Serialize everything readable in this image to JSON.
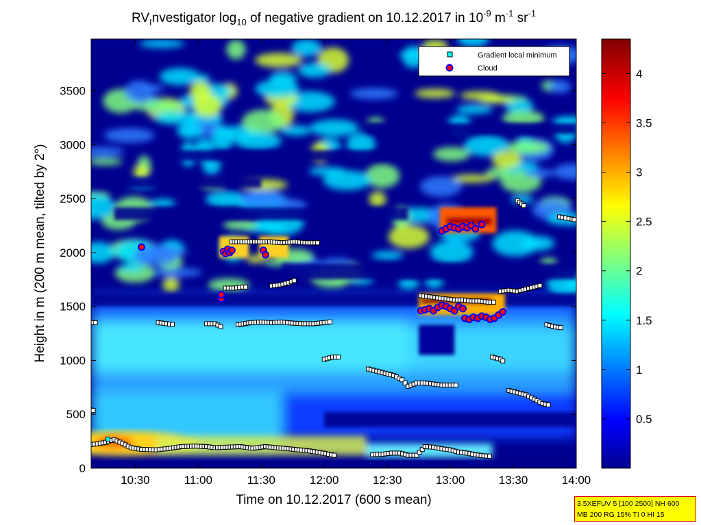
{
  "chart_data": {
    "type": "heatmap",
    "title": {
      "prefix": "RV",
      "prefix_sub": "I",
      "part1": "nvestigator log",
      "part1_sub": "10",
      "part2": " of negative gradient on 10.12.2017 in 10",
      "exp1": "-9",
      "part3": " m",
      "exp2": "-1",
      "part4": " sr",
      "exp3": "-1"
    },
    "xlabel": "Time on 10.12.2017 (600 s mean)",
    "ylabel": "Height in m (200 m mean, tilted by 2°)",
    "x_ticks": [
      {
        "t": 630,
        "label": "10:30"
      },
      {
        "t": 660,
        "label": "11:00"
      },
      {
        "t": 690,
        "label": "11:30"
      },
      {
        "t": 720,
        "label": "12:00"
      },
      {
        "t": 750,
        "label": "12:30"
      },
      {
        "t": 780,
        "label": "13:00"
      },
      {
        "t": 810,
        "label": "13:30"
      },
      {
        "t": 840,
        "label": "14:00"
      }
    ],
    "xlim_minutes": [
      609,
      840
    ],
    "y_ticks": [
      0,
      500,
      1000,
      1500,
      2000,
      2500,
      3000,
      3500
    ],
    "ylim": [
      0,
      3980
    ],
    "colorbar": {
      "ticks": [
        "0.5",
        "1",
        "1.5",
        "2",
        "2.5",
        "3",
        "3.5",
        "4"
      ],
      "tick_values": [
        0.5,
        1,
        1.5,
        2,
        2.5,
        3,
        3.5,
        4
      ],
      "range": [
        0,
        4.35
      ],
      "colormap": "jet"
    },
    "legend": {
      "position": "top-right",
      "entries": [
        {
          "label": "Gradient local minimum",
          "marker": "square",
          "color": "#00ffff"
        },
        {
          "label": "Cloud",
          "marker": "circle",
          "color": "#ff0000",
          "edge": "#0000ff"
        }
      ]
    },
    "cloud_points": [
      {
        "t": 633,
        "h": 2050
      },
      {
        "t": 672,
        "h": 2010
      },
      {
        "t": 673,
        "h": 1990
      },
      {
        "t": 674,
        "h": 2030
      },
      {
        "t": 675,
        "h": 2000
      },
      {
        "t": 676,
        "h": 2020
      },
      {
        "t": 671,
        "h": 1570
      },
      {
        "t": 671,
        "h": 1610
      },
      {
        "t": 691,
        "h": 2020
      },
      {
        "t": 692,
        "h": 1980
      },
      {
        "t": 776,
        "h": 2200
      },
      {
        "t": 778,
        "h": 2220
      },
      {
        "t": 780,
        "h": 2240
      },
      {
        "t": 782,
        "h": 2230
      },
      {
        "t": 784,
        "h": 2220
      },
      {
        "t": 786,
        "h": 2240
      },
      {
        "t": 788,
        "h": 2230
      },
      {
        "t": 790,
        "h": 2250
      },
      {
        "t": 792,
        "h": 2220
      },
      {
        "t": 795,
        "h": 2260
      },
      {
        "t": 766,
        "h": 1460
      },
      {
        "t": 768,
        "h": 1470
      },
      {
        "t": 770,
        "h": 1480
      },
      {
        "t": 772,
        "h": 1460
      },
      {
        "t": 774,
        "h": 1490
      },
      {
        "t": 776,
        "h": 1510
      },
      {
        "t": 778,
        "h": 1500
      },
      {
        "t": 780,
        "h": 1480
      },
      {
        "t": 782,
        "h": 1460
      },
      {
        "t": 784,
        "h": 1500
      },
      {
        "t": 786,
        "h": 1480
      },
      {
        "t": 787,
        "h": 1390
      },
      {
        "t": 789,
        "h": 1380
      },
      {
        "t": 791,
        "h": 1400
      },
      {
        "t": 793,
        "h": 1390
      },
      {
        "t": 795,
        "h": 1410
      },
      {
        "t": 797,
        "h": 1400
      },
      {
        "t": 799,
        "h": 1380
      },
      {
        "t": 801,
        "h": 1390
      },
      {
        "t": 803,
        "h": 1420
      },
      {
        "t": 805,
        "h": 1450
      }
    ],
    "minima_lines": [
      [
        [
          609,
          220
        ],
        [
          612,
          225
        ],
        [
          616,
          240
        ],
        [
          620,
          265
        ],
        [
          624,
          230
        ],
        [
          628,
          190
        ],
        [
          633,
          175
        ],
        [
          640,
          170
        ],
        [
          647,
          185
        ],
        [
          652,
          200
        ],
        [
          658,
          205
        ],
        [
          664,
          200
        ],
        [
          668,
          190
        ],
        [
          674,
          195
        ],
        [
          680,
          200
        ],
        [
          686,
          185
        ],
        [
          692,
          200
        ],
        [
          697,
          190
        ],
        [
          703,
          180
        ],
        [
          708,
          170
        ],
        [
          713,
          160
        ],
        [
          718,
          145
        ],
        [
          722,
          130
        ],
        [
          726,
          115
        ]
      ],
      [
        [
          743,
          125
        ],
        [
          748,
          130
        ],
        [
          752,
          140
        ],
        [
          756,
          140
        ],
        [
          760,
          120
        ],
        [
          764,
          120
        ],
        [
          768,
          200
        ],
        [
          772,
          195
        ],
        [
          776,
          180
        ],
        [
          780,
          170
        ],
        [
          784,
          150
        ],
        [
          788,
          140
        ],
        [
          792,
          125
        ],
        [
          796,
          115
        ],
        [
          800,
          110
        ]
      ],
      [
        [
          610,
          1350
        ],
        [
          612,
          1350
        ]
      ],
      [
        [
          641,
          1350
        ],
        [
          645,
          1340
        ],
        [
          649,
          1330
        ]
      ],
      [
        [
          664,
          1340
        ],
        [
          668,
          1340
        ],
        [
          672,
          1300
        ]
      ],
      [
        [
          679,
          1330
        ],
        [
          685,
          1350
        ],
        [
          690,
          1355
        ],
        [
          695,
          1350
        ],
        [
          700,
          1355
        ],
        [
          705,
          1345
        ],
        [
          710,
          1340
        ],
        [
          715,
          1340
        ],
        [
          720,
          1350
        ],
        [
          724,
          1360
        ]
      ],
      [
        [
          741,
          920
        ],
        [
          745,
          900
        ],
        [
          749,
          880
        ],
        [
          753,
          860
        ],
        [
          757,
          820
        ],
        [
          760,
          760
        ],
        [
          764,
          790
        ],
        [
          768,
          790
        ],
        [
          772,
          780
        ],
        [
          776,
          770
        ],
        [
          780,
          770
        ],
        [
          784,
          770
        ]
      ],
      [
        [
          720,
          1010
        ],
        [
          724,
          1030
        ],
        [
          728,
          1030
        ]
      ],
      [
        [
          808,
          720
        ],
        [
          812,
          700
        ],
        [
          816,
          680
        ],
        [
          820,
          640
        ],
        [
          824,
          600
        ],
        [
          828,
          580
        ]
      ],
      [
        [
          673,
          1670
        ],
        [
          677,
          1670
        ],
        [
          681,
          1680
        ],
        [
          684,
          1680
        ]
      ],
      [
        [
          695,
          1690
        ],
        [
          699,
          1700
        ],
        [
          703,
          1720
        ],
        [
          707,
          1750
        ]
      ],
      [
        [
          676,
          2100
        ],
        [
          682,
          2100
        ],
        [
          688,
          2100
        ],
        [
          694,
          2100
        ],
        [
          700,
          2090
        ],
        [
          706,
          2100
        ],
        [
          712,
          2090
        ],
        [
          718,
          2090
        ]
      ],
      [
        [
          804,
          1640
        ],
        [
          808,
          1650
        ],
        [
          812,
          1640
        ],
        [
          816,
          1660
        ],
        [
          820,
          1680
        ],
        [
          824,
          1700
        ]
      ],
      [
        [
          826,
          1330
        ],
        [
          830,
          1310
        ],
        [
          834,
          1300
        ]
      ],
      [
        [
          832,
          2330
        ],
        [
          835,
          2320
        ],
        [
          838,
          2310
        ],
        [
          840,
          2300
        ]
      ],
      [
        [
          812,
          2480
        ],
        [
          814,
          2450
        ],
        [
          816,
          2420
        ]
      ],
      [
        [
          766,
          1600
        ],
        [
          770,
          1590
        ],
        [
          774,
          1580
        ],
        [
          778,
          1570
        ],
        [
          782,
          1560
        ],
        [
          786,
          1560
        ],
        [
          790,
          1550
        ],
        [
          794,
          1550
        ],
        [
          798,
          1540
        ],
        [
          802,
          1540
        ]
      ],
      [
        [
          800,
          1030
        ],
        [
          804,
          1010
        ],
        [
          806,
          980
        ]
      ],
      [
        [
          609,
          540
        ],
        [
          611,
          530
        ]
      ]
    ],
    "cyan_minima": [
      {
        "t": 617,
        "h": 270
      }
    ]
  },
  "param_box": {
    "line1": "3.5XEFUV 5 [100 2500] NH 600",
    "line2": "MB 200 RG 15% TI 0 HI 15"
  }
}
